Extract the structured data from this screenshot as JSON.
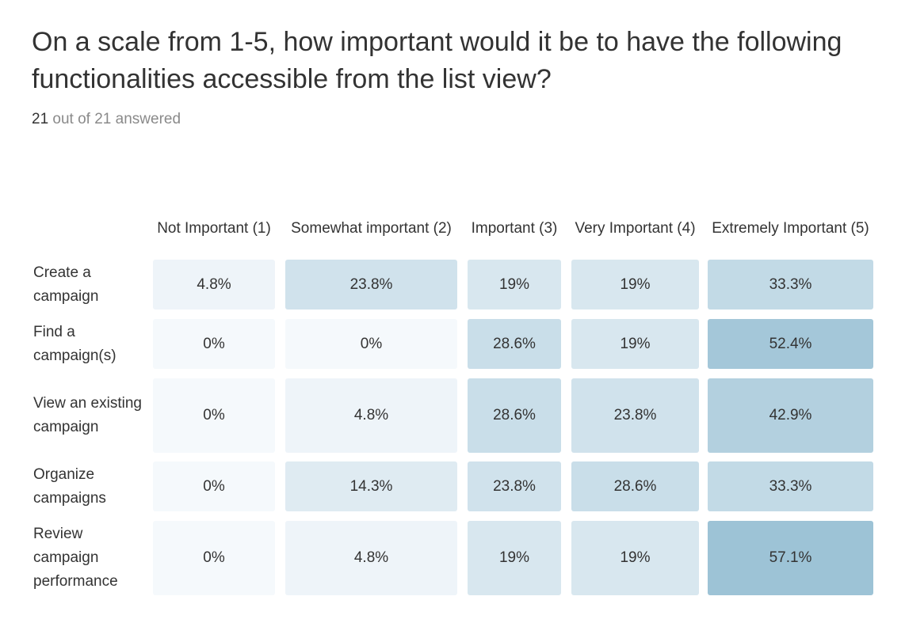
{
  "question": {
    "title": "On a scale from 1-5, how important would it be to have the following functionalities accessible from the list view?",
    "answered_count": "21",
    "answered_rest": " out of 21 answered"
  },
  "chart_data": {
    "type": "heatmap",
    "title": "On a scale from 1-5, how important would it be to have the following functionalities accessible from the list view?",
    "columns": [
      "Not Important (1)",
      "Somewhat important (2)",
      "Important (3)",
      "Very Important (4)",
      "Extremely Important (5)"
    ],
    "rows": [
      {
        "label": "Create a campaign",
        "values": [
          4.8,
          23.8,
          19,
          19,
          33.3
        ],
        "display": [
          "4.8%",
          "23.8%",
          "19%",
          "19%",
          "33.3%"
        ]
      },
      {
        "label": "Find a campaign(s)",
        "values": [
          0,
          0,
          28.6,
          19,
          52.4
        ],
        "display": [
          "0%",
          "0%",
          "28.6%",
          "19%",
          "52.4%"
        ]
      },
      {
        "label": "View an existing campaign",
        "values": [
          0,
          4.8,
          28.6,
          23.8,
          42.9
        ],
        "display": [
          "0%",
          "4.8%",
          "28.6%",
          "23.8%",
          "42.9%"
        ]
      },
      {
        "label": "Organize campaigns",
        "values": [
          0,
          14.3,
          23.8,
          28.6,
          33.3
        ],
        "display": [
          "0%",
          "14.3%",
          "23.8%",
          "28.6%",
          "33.3%"
        ]
      },
      {
        "label": "Review campaign performance",
        "values": [
          0,
          4.8,
          19,
          19,
          57.1
        ],
        "display": [
          "0%",
          "4.8%",
          "19%",
          "19%",
          "57.1%"
        ]
      }
    ],
    "unit": "%",
    "color_low": "#f5f9fc",
    "color_high": "#9dc3d6"
  }
}
